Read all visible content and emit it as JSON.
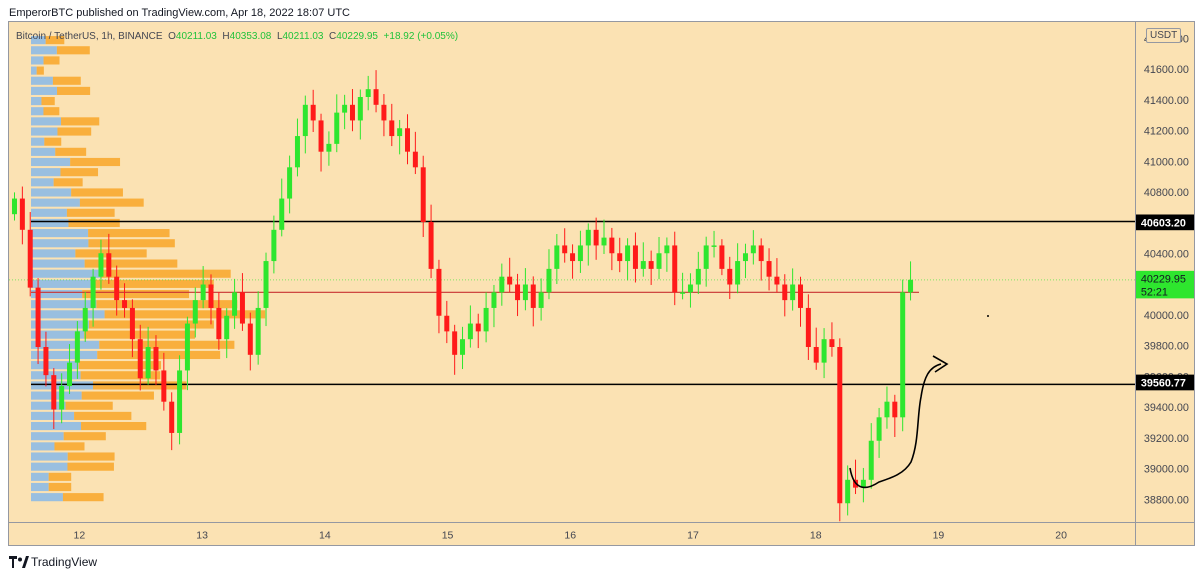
{
  "header": {
    "published": "EmperorBTC published on TradingView.com, Apr 18, 2022 18:07 UTC"
  },
  "legend": {
    "symbol": "Bitcoin / TetherUS, 1h, BINANCE",
    "o_key": "O",
    "o": "40211.03",
    "h_key": "H",
    "h": "40353.08",
    "l_key": "L",
    "l": "40211.03",
    "c_key": "C",
    "c": "40229.95",
    "change": "+18.92 (+0.05%)"
  },
  "currency": "USDT",
  "footer": {
    "brand": "TradingView"
  },
  "colors": {
    "background": "#fbe2b3",
    "up": "#2ee62e",
    "down": "#ff1a1a",
    "level_line": "#000000",
    "poc_line": "#c83232",
    "profile_blue": "#87b8e8",
    "profile_orange": "#f9a21f"
  },
  "chart_data": {
    "type": "candlestick",
    "symbol": "Bitcoin / TetherUS",
    "interval": "1h",
    "exchange": "BINANCE",
    "ylim": [
      38680,
      41880
    ],
    "y_ticks": [
      38800,
      39000,
      39200,
      39400,
      39600,
      39800,
      40000,
      40200,
      40400,
      40600,
      40800,
      41000,
      41200,
      41400,
      41600,
      41800
    ],
    "y_tick_labels": [
      "38800.00",
      "39000.00",
      "39200.00",
      "39400.00",
      "39600.00",
      "39800.00",
      "40000.00",
      "40200.00",
      "40400.00",
      "40600.00",
      "40800.00",
      "41000.00",
      "41200.00",
      "41400.00",
      "41600.00",
      "41800.00"
    ],
    "x_ticks": [
      "12",
      "13",
      "14",
      "15",
      "16",
      "17",
      "18",
      "19",
      "20"
    ],
    "horizontal_levels": [
      {
        "price": 40603.2,
        "label": "40603.20"
      },
      {
        "price": 39560.77,
        "label": "39560.77"
      }
    ],
    "poc_level": 40150,
    "last_price": {
      "price": 40229.95,
      "label": "40229.95",
      "countdown": "52:21"
    },
    "closes": [
      40750,
      40550,
      40180,
      39800,
      39620,
      39400,
      39550,
      39700,
      39900,
      40050,
      40250,
      40400,
      40250,
      40100,
      40050,
      39850,
      39600,
      39800,
      39650,
      39450,
      39250,
      39650,
      39950,
      40100,
      40200,
      40050,
      39850,
      40000,
      40150,
      39950,
      39750,
      40050,
      40350,
      40550,
      40750,
      40950,
      41150,
      41350,
      41250,
      41050,
      41100,
      41300,
      41350,
      41250,
      41400,
      41450,
      41350,
      41250,
      41150,
      41200,
      41050,
      40950,
      40600,
      40300,
      40000,
      39900,
      39750,
      39850,
      39950,
      39900,
      40050,
      40150,
      40250,
      40200,
      40100,
      40200,
      40050,
      40150,
      40300,
      40450,
      40400,
      40350,
      40450,
      40550,
      40450,
      40500,
      40400,
      40350,
      40450,
      40300,
      40350,
      40300,
      40400,
      40450,
      40150,
      40150,
      40200,
      40300,
      40450,
      40450,
      40300,
      40200,
      40350,
      40400,
      40450,
      40350,
      40250,
      40200,
      40100,
      40200,
      40050,
      39800,
      39700,
      39850,
      39800,
      38800,
      38950,
      38900,
      38950,
      39200,
      39350,
      39450,
      39350,
      40150,
      40230
    ],
    "profile_levels": 46
  }
}
